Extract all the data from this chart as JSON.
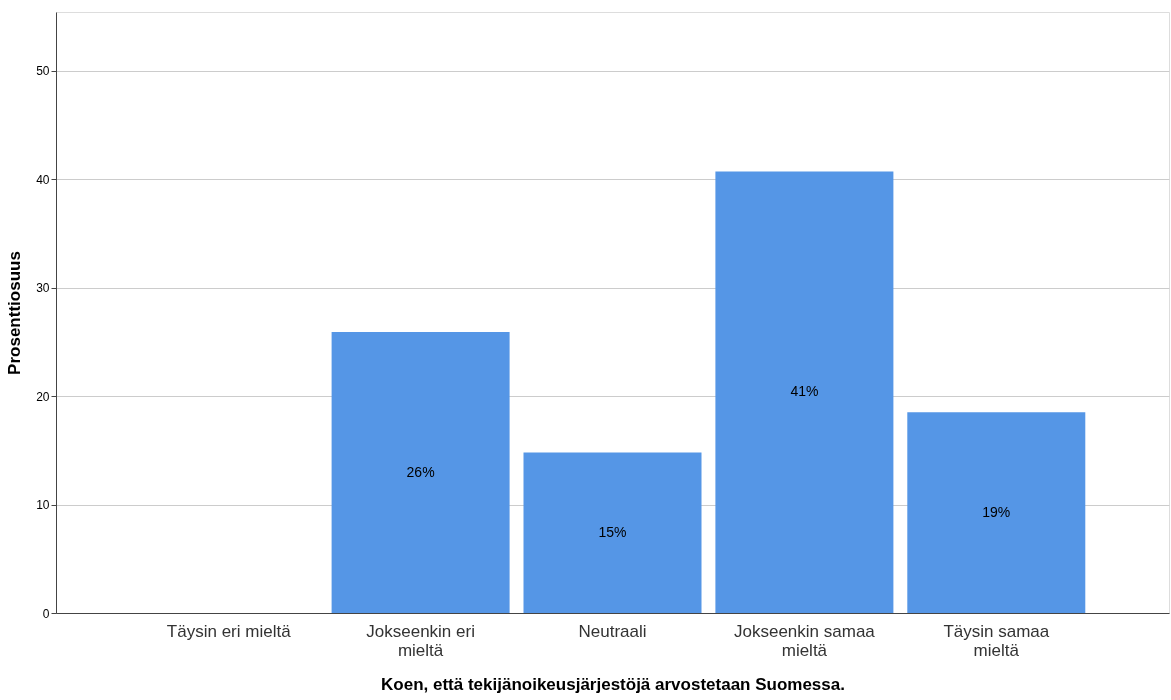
{
  "chart_data": {
    "type": "bar",
    "xlabel": "Koen, että tekijänoikeusjärjestöjä arvostetaan Suomessa.",
    "ylabel": "Prosenttiosuus",
    "categories": [
      "Täysin eri mieltä",
      "Jokseenkin eri mieltä",
      "Neutraali",
      "Jokseenkin samaa mieltä",
      "Täysin samaa mieltä"
    ],
    "values": [
      0,
      25.9,
      14.8,
      40.7,
      18.5
    ],
    "value_labels": [
      null,
      "26%",
      "15%",
      "41%",
      "19%"
    ],
    "color": "#5596e6",
    "ylim": [
      0,
      55.4
    ],
    "yticks": [
      0,
      10,
      20,
      30,
      40,
      50
    ],
    "grid": "y"
  }
}
